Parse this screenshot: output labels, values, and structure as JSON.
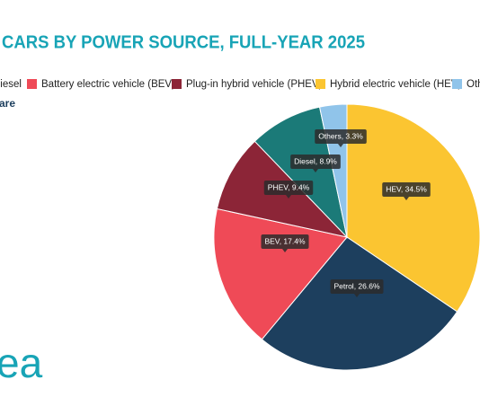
{
  "chart_data": {
    "type": "pie",
    "title": "CARS BY POWER SOURCE, FULL-YEAR 2025",
    "subtitle": "are",
    "logo": "ea",
    "legend": [
      {
        "name": "Diesel",
        "color": "#1b7a78"
      },
      {
        "name": "Battery electric vehicle (BEV)",
        "color": "#ef4a57"
      },
      {
        "name": "Plug-in hybrid vehicle (PHEV)",
        "color": "#8c2537"
      },
      {
        "name": "Hybrid electric vehicle (HEV)",
        "color": "#fbc531"
      },
      {
        "name": "Others",
        "color": "#90c4ea"
      }
    ],
    "categories": [
      "HEV",
      "Petrol",
      "BEV",
      "PHEV",
      "Diesel",
      "Others"
    ],
    "values": [
      34.5,
      26.6,
      17.4,
      9.4,
      8.9,
      3.3
    ],
    "value_labels": [
      "HEV, 34.5%",
      "Petrol, 26.6%",
      "BEV, 17.4%",
      "PHEV, 9.4%",
      "Diesel, 8.9%",
      "Others, 3.3%"
    ],
    "colors": [
      "#fbc531",
      "#1d3f5e",
      "#ef4a57",
      "#8c2537",
      "#1b7a78",
      "#90c4ea"
    ]
  }
}
